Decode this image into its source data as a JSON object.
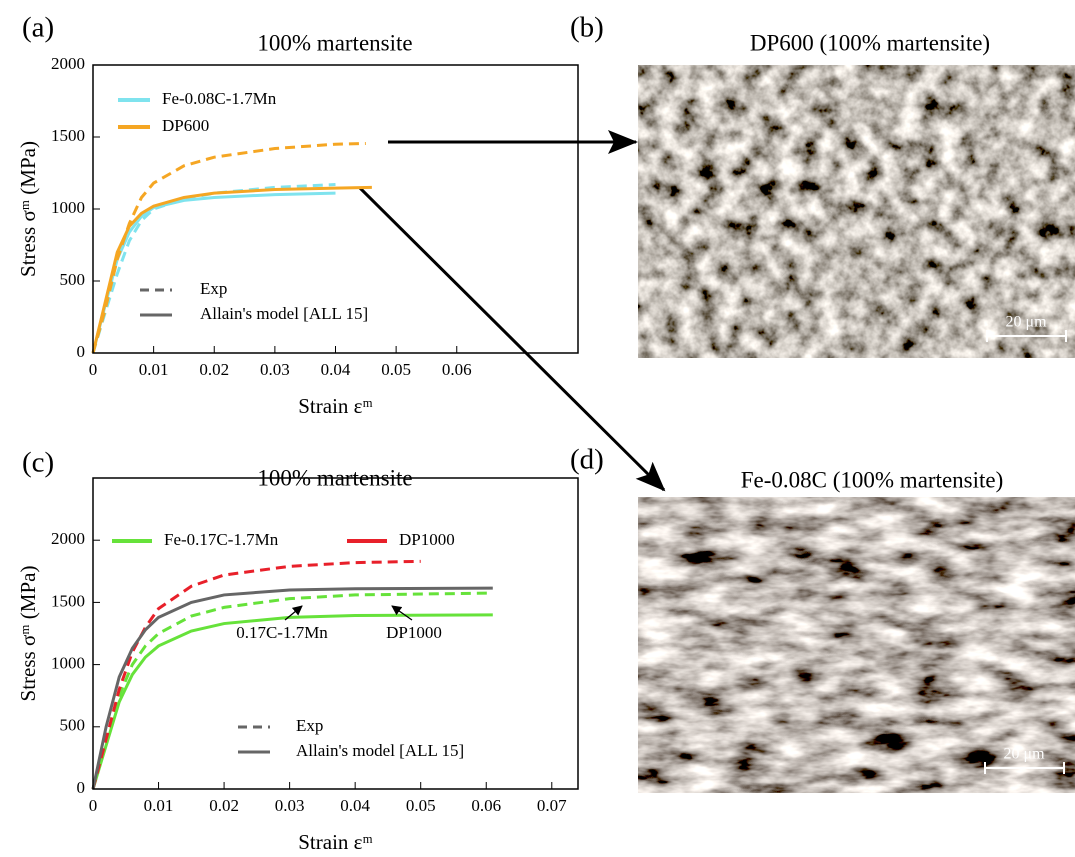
{
  "chart_data": [
    {
      "type": "line",
      "panel_label": "(a)",
      "title": "100% martensite",
      "xlabel": "Strain εᵐ",
      "ylabel": "Stress σᵐ (MPa)",
      "xlim": [
        0,
        0.08
      ],
      "xticks": [
        0,
        0.01,
        0.02,
        0.03,
        0.04,
        0.05,
        0.06
      ],
      "ylim": [
        0,
        2000
      ],
      "yticks": [
        0,
        500,
        1000,
        1500,
        2000
      ],
      "grid": false,
      "legend": "upper left",
      "series": [
        {
          "name": "Fe-0.08C-1.7Mn",
          "color": "#7fe3ee",
          "curves": [
            {
              "dashed": true,
              "x": [
                0,
                0.002,
                0.004,
                0.006,
                0.008,
                0.01,
                0.015,
                0.02,
                0.03,
                0.04
              ],
              "values": [
                0,
                280,
                550,
                780,
                920,
                1000,
                1070,
                1110,
                1150,
                1170
              ]
            },
            {
              "dashed": false,
              "x": [
                0,
                0.002,
                0.004,
                0.006,
                0.008,
                0.01,
                0.015,
                0.02,
                0.03,
                0.04
              ],
              "values": [
                0,
                330,
                650,
                840,
                950,
                1010,
                1060,
                1080,
                1100,
                1110
              ]
            }
          ]
        },
        {
          "name": "DP600",
          "color": "#f5a623",
          "curves": [
            {
              "dashed": true,
              "x": [
                0,
                0.002,
                0.004,
                0.006,
                0.008,
                0.01,
                0.015,
                0.02,
                0.03,
                0.04,
                0.045
              ],
              "values": [
                0,
                300,
                650,
                900,
                1080,
                1180,
                1300,
                1360,
                1420,
                1450,
                1455
              ]
            },
            {
              "dashed": false,
              "x": [
                0,
                0.002,
                0.004,
                0.006,
                0.008,
                0.01,
                0.015,
                0.02,
                0.03,
                0.04,
                0.046
              ],
              "values": [
                0,
                350,
                700,
                880,
                970,
                1020,
                1080,
                1110,
                1135,
                1145,
                1150
              ]
            }
          ]
        }
      ],
      "line_styles": [
        {
          "name": "Exp",
          "dashed": true,
          "color": "#666666"
        },
        {
          "name": "Allain's model [ALL 15]",
          "dashed": false,
          "color": "#666666"
        }
      ]
    },
    {
      "type": "line",
      "panel_label": "(c)",
      "title": "100% martensite",
      "xlabel": "Strain εᵐ",
      "ylabel": "Stress σᵐ (MPa)",
      "xlim": [
        0,
        0.074
      ],
      "xticks": [
        0,
        0.01,
        0.02,
        0.03,
        0.04,
        0.05,
        0.06,
        0.07
      ],
      "ylim": [
        0,
        2500
      ],
      "yticks": [
        0,
        500,
        1000,
        1500,
        2000
      ],
      "grid": false,
      "legend": "upper center",
      "series": [
        {
          "name": "Fe-0.17C-1.7Mn",
          "color": "#66e23a",
          "curves": [
            {
              "dashed": true,
              "x": [
                0,
                0.002,
                0.004,
                0.006,
                0.008,
                0.01,
                0.015,
                0.02,
                0.03,
                0.04,
                0.061
              ],
              "values": [
                0,
                380,
                750,
                1000,
                1150,
                1250,
                1390,
                1460,
                1530,
                1560,
                1575
              ]
            },
            {
              "dashed": false,
              "x": [
                0,
                0.002,
                0.004,
                0.006,
                0.008,
                0.01,
                0.015,
                0.02,
                0.03,
                0.04,
                0.061
              ],
              "values": [
                0,
                350,
                700,
                920,
                1060,
                1150,
                1270,
                1330,
                1380,
                1395,
                1400
              ]
            }
          ]
        },
        {
          "name": "DP1000",
          "color": "#e8202a",
          "curves": [
            {
              "dashed": true,
              "x": [
                0,
                0.002,
                0.004,
                0.006,
                0.008,
                0.01,
                0.015,
                0.02,
                0.03,
                0.04,
                0.05
              ],
              "values": [
                0,
                400,
                800,
                1100,
                1300,
                1450,
                1630,
                1720,
                1790,
                1820,
                1830
              ]
            },
            {
              "dashed": false,
              "color": "#666666",
              "x": [
                0,
                0.002,
                0.004,
                0.006,
                0.008,
                0.01,
                0.015,
                0.02,
                0.03,
                0.04,
                0.061
              ],
              "values": [
                0,
                500,
                900,
                1130,
                1280,
                1380,
                1500,
                1560,
                1600,
                1610,
                1615
              ]
            }
          ]
        }
      ],
      "line_styles": [
        {
          "name": "Exp",
          "dashed": true,
          "color": "#666666"
        },
        {
          "name": "Allain's model [ALL 15]",
          "dashed": false,
          "color": "#666666"
        }
      ],
      "annotations": [
        "0.17C-1.7Mn",
        "DP1000"
      ]
    }
  ],
  "panels": [
    {
      "label": "(b)",
      "title": "DP600 (100% martensite)",
      "scale_bar": "20 μm"
    },
    {
      "label": "(d)",
      "title": "Fe-0.08C (100% martensite)",
      "scale_bar": "20 μm"
    }
  ]
}
